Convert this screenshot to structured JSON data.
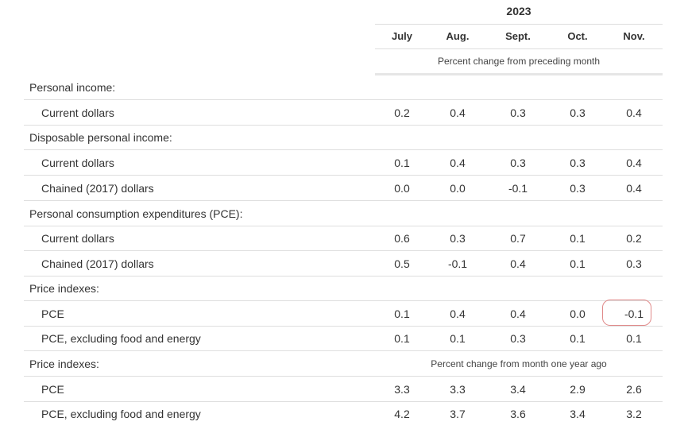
{
  "header": {
    "year": "2023",
    "months": [
      "July",
      "Aug.",
      "Sept.",
      "Oct.",
      "Nov."
    ],
    "subheading": "Percent change from preceding month"
  },
  "rows": [
    {
      "label": "Personal income:",
      "values": []
    },
    {
      "label": "Current dollars",
      "values": [
        "0.2",
        "0.4",
        "0.3",
        "0.3",
        "0.4"
      ]
    },
    {
      "label": "Disposable personal income:",
      "values": []
    },
    {
      "label": "Current dollars",
      "values": [
        "0.1",
        "0.4",
        "0.3",
        "0.3",
        "0.4"
      ]
    },
    {
      "label": "Chained (2017) dollars",
      "values": [
        "0.0",
        "0.0",
        "-0.1",
        "0.3",
        "0.4"
      ]
    },
    {
      "label": "Personal consumption expenditures (PCE):",
      "values": []
    },
    {
      "label": "Current dollars",
      "values": [
        "0.6",
        "0.3",
        "0.7",
        "0.1",
        "0.2"
      ]
    },
    {
      "label": "Chained (2017) dollars",
      "values": [
        "0.5",
        "-0.1",
        "0.4",
        "0.1",
        "0.3"
      ]
    },
    {
      "label": "Price indexes:",
      "values": []
    },
    {
      "label": "PCE",
      "values": [
        "0.1",
        "0.4",
        "0.4",
        "0.0",
        "-0.1"
      ]
    },
    {
      "label": "PCE, excluding food and energy",
      "values": [
        "0.1",
        "0.1",
        "0.3",
        "0.1",
        "0.1"
      ]
    },
    {
      "label": "Price indexes:",
      "subheading": "Percent change from month one year ago",
      "values": []
    },
    {
      "label": "PCE",
      "values": [
        "3.3",
        "3.3",
        "3.4",
        "2.9",
        "2.6"
      ]
    },
    {
      "label": "PCE, excluding food and energy",
      "values": [
        "4.2",
        "3.7",
        "3.6",
        "3.4",
        "3.2"
      ]
    }
  ],
  "highlight": {
    "color": "#e08a8a"
  }
}
